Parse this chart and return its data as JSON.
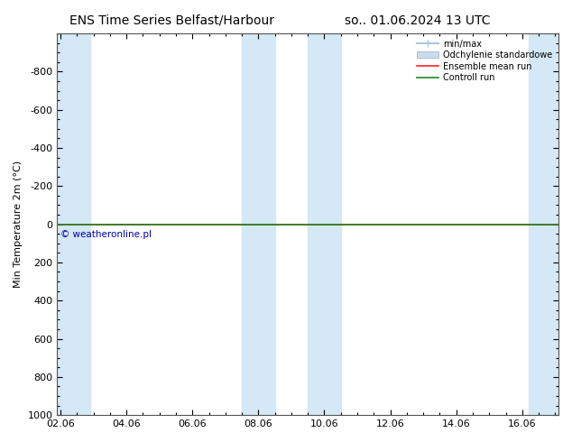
{
  "title_left": "ENS Time Series Belfast/Harbour",
  "title_right": "so.. 01.06.2024 13 UTC",
  "ylabel": "Min Temperature 2m (°C)",
  "ylim_bottom": 1000,
  "ylim_top": -1000,
  "yticks": [
    -800,
    -600,
    -400,
    -200,
    0,
    200,
    400,
    600,
    800,
    1000
  ],
  "xtick_labels": [
    "02.06",
    "04.06",
    "06.06",
    "08.06",
    "10.06",
    "12.06",
    "14.06",
    "16.06"
  ],
  "xtick_positions": [
    0,
    2,
    4,
    6,
    8,
    10,
    12,
    14
  ],
  "xlim_min": -0.1,
  "xlim_max": 15.1,
  "background_color": "#ffffff",
  "plot_bg_color": "#ffffff",
  "shaded_band_color": "#d4e8f5",
  "shaded_bands": [
    [
      -0.1,
      0.9
    ],
    [
      5.5,
      6.5
    ],
    [
      7.5,
      8.5
    ],
    [
      14.2,
      15.1
    ]
  ],
  "green_line_y": 0,
  "green_line_color": "#228822",
  "red_line_color": "#ff2222",
  "minmax_color": "#a8c8e0",
  "std_color": "#c8ddef",
  "copyright_text": "© weatheronline.pl",
  "copyright_color": "#0000bb",
  "legend_items": [
    {
      "label": "min/max",
      "color": "#a8c8e0",
      "lw": 1.5
    },
    {
      "label": "Odchylenie standardowe",
      "color": "#c8ddef",
      "lw": 8
    },
    {
      "label": "Ensemble mean run",
      "color": "#ff2222",
      "lw": 1.2
    },
    {
      "label": "Controll run",
      "color": "#228822",
      "lw": 1.2
    }
  ],
  "title_fontsize": 10,
  "tick_fontsize": 8,
  "ylabel_fontsize": 8
}
